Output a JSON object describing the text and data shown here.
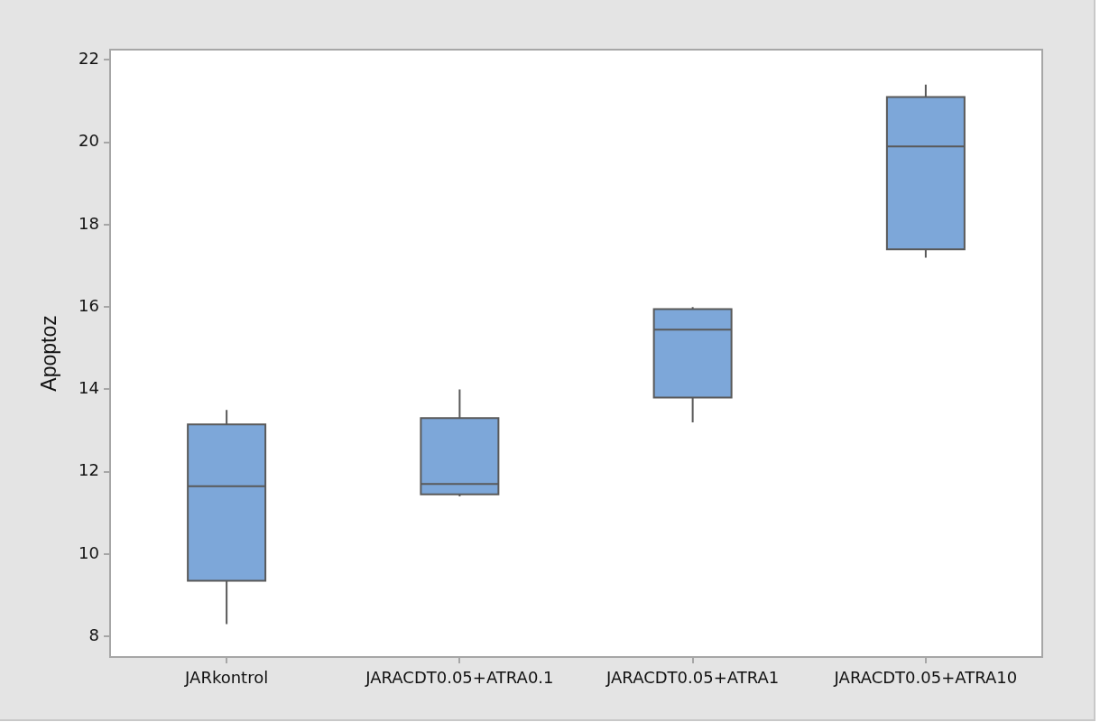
{
  "chart_data": {
    "type": "box",
    "ylabel": "Apoptoz",
    "categories": [
      "JARkontrol",
      "JARACDT0.05+ATRA0.1",
      "JARACDT0.05+ATRA1",
      "JARACDT0.05+ATRA10"
    ],
    "series": [
      {
        "color": "#7da7d9",
        "boxes": [
          {
            "low": 8.3,
            "q1": 9.35,
            "median": 11.65,
            "q3": 13.15,
            "high": 13.5
          },
          {
            "low": 11.4,
            "q1": 11.45,
            "median": 11.7,
            "q3": 13.3,
            "high": 14.0
          },
          {
            "low": 13.2,
            "q1": 13.8,
            "median": 15.45,
            "q3": 15.95,
            "high": 16.0
          },
          {
            "low": 17.2,
            "q1": 17.4,
            "median": 19.9,
            "q3": 21.1,
            "high": 21.4
          }
        ]
      }
    ],
    "ylim": [
      7.5,
      22.25
    ],
    "yticks": [
      8,
      10,
      12,
      14,
      16,
      18,
      20,
      22
    ]
  }
}
